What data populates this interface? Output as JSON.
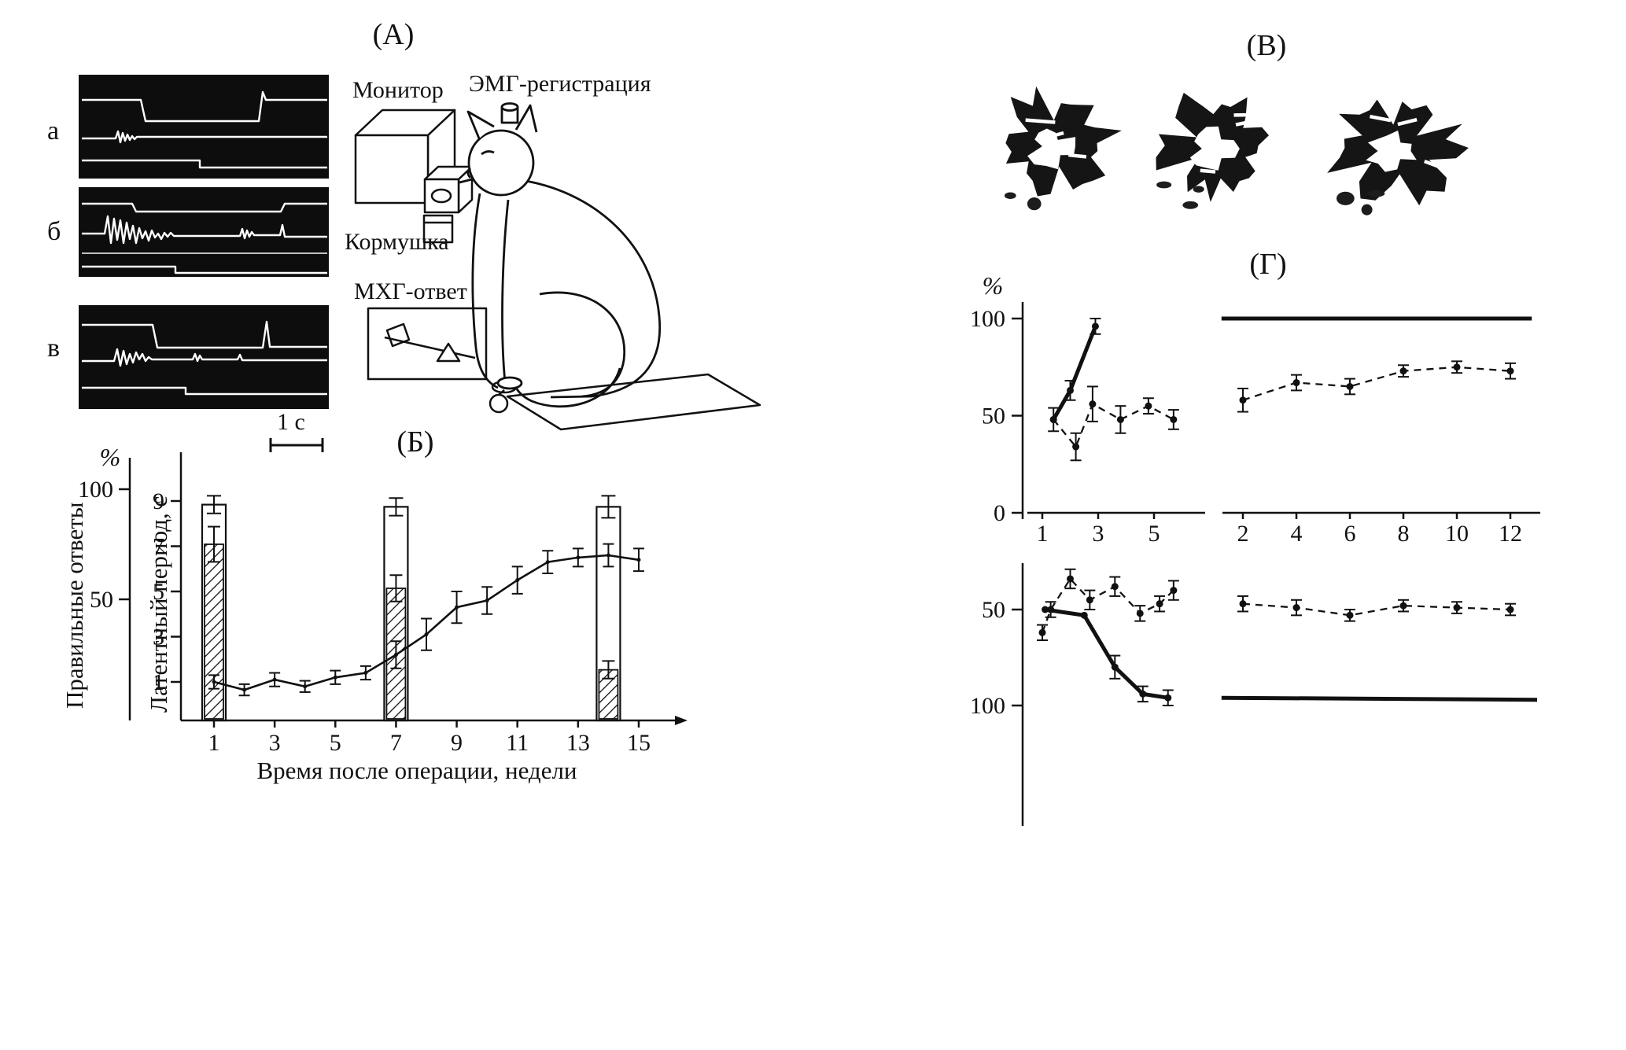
{
  "figure": {
    "panels": {
      "a": {
        "label": "(А)",
        "trace_labels": [
          "а",
          "б",
          "в"
        ],
        "monitor_label": "Монитор",
        "emg_label": "ЭМГ-регистрация",
        "feeder_label": "Кормушка",
        "response_label": "МХГ-ответ",
        "scalebar_label": "1 с"
      },
      "b": {
        "label": "(Б)"
      },
      "v": {
        "label": "(В)",
        "section_count": 3
      },
      "g": {
        "label": "(Г)"
      }
    },
    "colors": {
      "ink": "#111111",
      "paper": "#ffffff",
      "film": "#0d0d0d"
    }
  },
  "chart_data": [
    {
      "id": "panel-b",
      "type": "bar+line",
      "x_label": "Время после операции, недели",
      "x_ticks": [
        1,
        3,
        5,
        7,
        9,
        11,
        13,
        15
      ],
      "y_percent": {
        "label": "Правильные ответы",
        "unit": "%",
        "ticks": [
          100,
          50
        ]
      },
      "y_latency": {
        "label": "Латентный период, с",
        "ticks": [
          9,
          7,
          5,
          3,
          1
        ]
      },
      "bars": {
        "weeks": [
          1,
          7,
          14
        ],
        "open": {
          "values_pct": [
            93,
            92,
            92
          ],
          "errors_pct": [
            4,
            4,
            5
          ]
        },
        "hatched": {
          "values_pct": [
            75,
            55,
            18
          ],
          "errors_pct": [
            8,
            6,
            4
          ]
        }
      },
      "latency_series": {
        "weeks": [
          1,
          2,
          3,
          4,
          5,
          6,
          7,
          8,
          9,
          10,
          11,
          12,
          13,
          14,
          15
        ],
        "values_s": [
          1.0,
          0.65,
          1.1,
          0.8,
          1.2,
          1.4,
          2.2,
          3.1,
          4.3,
          4.6,
          5.5,
          6.3,
          6.5,
          6.6,
          6.4
        ],
        "errors_s": [
          0.3,
          0.25,
          0.3,
          0.25,
          0.3,
          0.3,
          0.6,
          0.7,
          0.7,
          0.6,
          0.6,
          0.5,
          0.4,
          0.5,
          0.5
        ]
      }
    },
    {
      "id": "panel-g-top",
      "type": "line",
      "unit": "%",
      "y_ticks": [
        100,
        50,
        0
      ],
      "ylim": [
        0,
        100
      ],
      "x_segments": [
        {
          "ticks": [
            1,
            3,
            5
          ]
        },
        {
          "ticks": [
            2,
            4,
            6,
            8,
            10,
            12
          ]
        }
      ],
      "series": [
        {
          "name": "left-dashed",
          "segment": "left",
          "style": "dashed",
          "markers": true,
          "points": [
            [
              1.4,
              48
            ],
            [
              2.2,
              34
            ],
            [
              2.8,
              56
            ],
            [
              3.8,
              48
            ],
            [
              4.8,
              55
            ],
            [
              5.7,
              48
            ]
          ],
          "errors": [
            6,
            7,
            9,
            7,
            4,
            5
          ]
        },
        {
          "name": "left-rise-solid",
          "segment": "left",
          "style": "solid-thick",
          "markers": true,
          "points": [
            [
              1.4,
              48
            ],
            [
              2.0,
              63
            ],
            [
              2.9,
              96
            ]
          ],
          "errors": [
            0,
            5,
            4
          ]
        },
        {
          "name": "right-dashed",
          "segment": "right",
          "style": "dashed",
          "markers": true,
          "points": [
            [
              2,
              58
            ],
            [
              4,
              67
            ],
            [
              6,
              65
            ],
            [
              8,
              73
            ],
            [
              10,
              75
            ],
            [
              12,
              73
            ]
          ],
          "errors": [
            6,
            4,
            4,
            3,
            3,
            4
          ]
        },
        {
          "name": "right-ceiling-solid",
          "segment": "right",
          "style": "solid-thick",
          "markers": false,
          "points": [
            [
              1.2,
              100
            ],
            [
              12.8,
              100
            ]
          ]
        }
      ]
    },
    {
      "id": "panel-g-bottom",
      "type": "line",
      "y_ticks": [
        50,
        100
      ],
      "inverted_axis": true,
      "series": [
        {
          "name": "left-dashed",
          "segment": "left",
          "style": "dashed",
          "markers": true,
          "points": [
            [
              1,
              62
            ],
            [
              1.3,
              50
            ],
            [
              2,
              34
            ],
            [
              2.7,
              45
            ],
            [
              3.6,
              38
            ],
            [
              4.5,
              52
            ],
            [
              5.2,
              47
            ],
            [
              5.7,
              40
            ]
          ],
          "errors": [
            4,
            4,
            5,
            5,
            5,
            4,
            4,
            5
          ]
        },
        {
          "name": "left-decline-solid",
          "segment": "left",
          "style": "solid-thick",
          "markers": true,
          "points": [
            [
              1.1,
              50
            ],
            [
              2.5,
              53
            ],
            [
              3.6,
              80
            ],
            [
              4.6,
              94
            ],
            [
              5.5,
              96
            ]
          ],
          "errors": [
            0,
            0,
            6,
            4,
            4
          ]
        },
        {
          "name": "right-dashed",
          "segment": "right",
          "style": "dashed",
          "markers": true,
          "points": [
            [
              2,
              47
            ],
            [
              4,
              49
            ],
            [
              6,
              53
            ],
            [
              8,
              48
            ],
            [
              10,
              49
            ],
            [
              12,
              50
            ]
          ],
          "errors": [
            4,
            4,
            3,
            3,
            3,
            3
          ]
        },
        {
          "name": "right-floor-solid",
          "segment": "right",
          "style": "solid-thick",
          "markers": false,
          "points": [
            [
              1.2,
              96
            ],
            [
              13,
              97
            ]
          ]
        }
      ]
    }
  ]
}
